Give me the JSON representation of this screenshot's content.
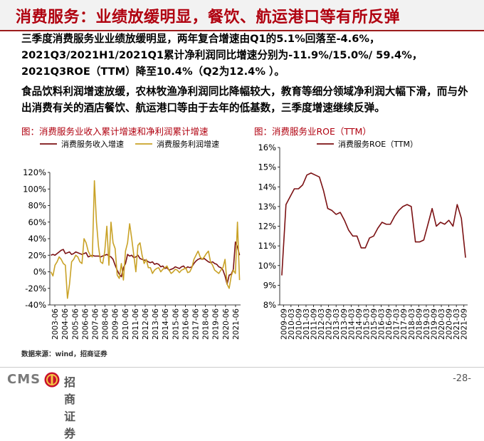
{
  "header": {
    "title": "消费服务：业绩放缓明显，餐饮、航运港口等有所反弹"
  },
  "paragraphs": {
    "p1": "三季度消费服务业业绩放缓明显，两年复合增速由Q1的5.1%回落至-4.6%，2021Q3/2021H1/2021Q1累计净利润同比增速分别为-11.9%/15.0%/ 59.4%，2021Q3ROE（TTM）降至10.4%（Q2为12.4% ）。",
    "p2": "食品饮料利润增速放缓，农林牧渔净利润同比降幅较大，教育等细分领域净利润大幅下滑，而与外出消费有关的酒店餐饮、航运港口等由于去年的低基数，三季度增速继续反弹。"
  },
  "source": "数据来源：wind，招商证券",
  "footer": {
    "logo_text": "CMS",
    "logo_cn": "招商证券",
    "page": "-28-"
  },
  "colors": {
    "title_red": "#b0000f",
    "series_dark_red": "#7b1113",
    "series_gold": "#c9a227"
  },
  "chart_data": [
    {
      "type": "line",
      "title": "图：消费服务业收入累计增速和净利润累计增速",
      "x_ticks": [
        "2003-06",
        "2004-06",
        "2005-06",
        "2006-06",
        "2007-06",
        "2008-06",
        "2009-06",
        "2010-06",
        "2011-06",
        "2012-06",
        "2013-06",
        "2014-06",
        "2015-06",
        "2016-06",
        "2017-06",
        "2018-06",
        "2019-06",
        "2020-06",
        "2021-06"
      ],
      "ylim": [
        -40,
        120
      ],
      "y_ticks": [
        "-40%",
        "-20%",
        "0%",
        "20%",
        "40%",
        "60%",
        "80%",
        "100%",
        "120%"
      ],
      "legend_position": "top",
      "series": [
        {
          "name": "消费服务收入增速",
          "color": "#7b1113",
          "values": [
            20,
            21,
            20,
            22,
            24,
            26,
            27,
            22,
            23,
            24,
            21,
            22,
            24,
            23,
            22,
            21,
            22,
            23,
            18,
            19,
            20,
            19,
            19,
            19,
            18,
            19,
            20,
            21,
            19,
            18,
            15,
            8,
            2,
            -3,
            -6,
            5,
            10,
            21,
            19,
            20,
            17,
            18,
            20,
            16,
            15,
            14,
            14,
            12,
            11,
            12,
            9,
            10,
            9,
            6,
            7,
            4,
            5,
            2,
            3,
            4,
            6,
            5,
            4,
            6,
            7,
            4,
            6,
            5,
            6,
            10,
            13,
            15,
            16,
            15,
            16,
            14,
            12,
            11,
            12,
            10,
            9,
            6,
            5,
            2,
            -5,
            -15,
            -4,
            -3,
            3,
            36,
            30,
            20
          ]
        },
        {
          "name": "消费服务利润增速",
          "color": "#c9a227",
          "values": [
            0,
            -5,
            8,
            12,
            18,
            15,
            10,
            8,
            -32,
            -15,
            12,
            15,
            20,
            18,
            12,
            10,
            40,
            35,
            25,
            20,
            18,
            110,
            60,
            30,
            12,
            10,
            25,
            55,
            8,
            60,
            35,
            28,
            -4,
            -8,
            10,
            -10,
            25,
            35,
            58,
            40,
            20,
            0,
            32,
            35,
            20,
            10,
            15,
            5,
            5,
            -2,
            2,
            4,
            5,
            0,
            3,
            5,
            7,
            2,
            -2,
            0,
            3,
            2,
            -1,
            2,
            3,
            5,
            -1,
            0,
            5,
            15,
            20,
            25,
            18,
            15,
            18,
            22,
            25,
            12,
            8,
            2,
            0,
            -2,
            2,
            5,
            15,
            -15,
            -20,
            -5,
            2,
            -2,
            60,
            -10
          ]
        }
      ]
    },
    {
      "type": "line",
      "title": "图：消费服务业ROE（TTM）",
      "x_ticks": [
        "2009-09",
        "2010-03",
        "2010-09",
        "2011-03",
        "2011-09",
        "2012-03",
        "2012-09",
        "2013-03",
        "2013-09",
        "2014-03",
        "2014-09",
        "2015-03",
        "2015-09",
        "2016-03",
        "2016-09",
        "2017-03",
        "2017-09",
        "2018-03",
        "2018-09",
        "2019-03",
        "2019-09",
        "2020-03",
        "2020-09",
        "2021-03",
        "2021-09"
      ],
      "ylim": [
        8,
        16
      ],
      "y_ticks": [
        "8%",
        "9%",
        "10%",
        "11%",
        "12%",
        "13%",
        "14%",
        "15%",
        "16%"
      ],
      "legend_position": "top",
      "series": [
        {
          "name": "消费服务ROE（TTM）",
          "color": "#7b1113",
          "values": [
            9.5,
            13.1,
            13.5,
            13.9,
            13.9,
            14.1,
            14.6,
            14.7,
            14.6,
            14.5,
            13.8,
            12.9,
            12.8,
            12.6,
            12.7,
            12.3,
            11.8,
            11.5,
            11.5,
            10.9,
            10.9,
            11.4,
            11.5,
            11.9,
            12.2,
            12.1,
            12.1,
            12.5,
            12.8,
            13.0,
            13.1,
            13.0,
            11.2,
            11.2,
            11.3,
            12.1,
            12.9,
            12.0,
            12.2,
            12.1,
            12.3,
            12.0,
            13.1,
            12.4,
            10.4
          ]
        }
      ]
    }
  ]
}
